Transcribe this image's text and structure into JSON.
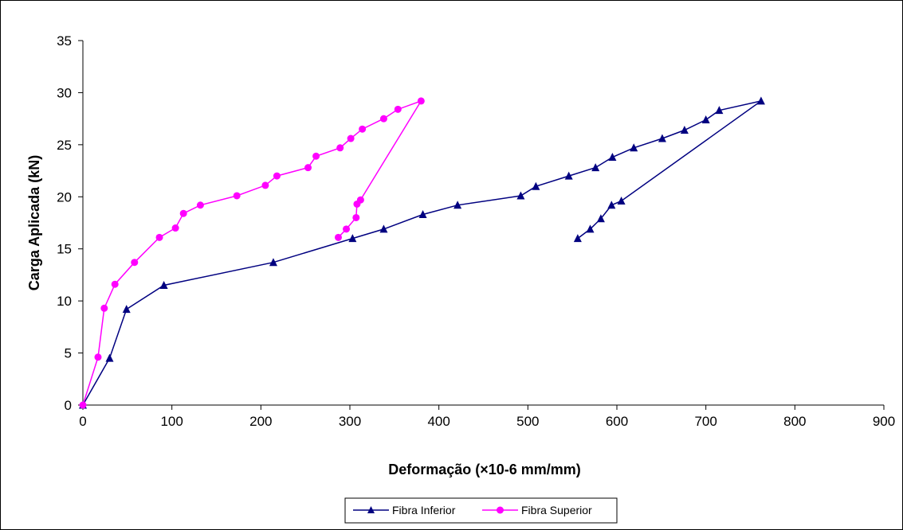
{
  "chart_data": {
    "type": "line",
    "xlabel": "Deformação (×10-6 mm/mm)",
    "ylabel": "Carga Aplicada (kN)",
    "xlim": [
      0,
      900
    ],
    "ylim": [
      0,
      35
    ],
    "xticks": [
      "0",
      "100",
      "200",
      "300",
      "400",
      "500",
      "600",
      "700",
      "800",
      "900"
    ],
    "yticks": [
      "0",
      "5",
      "10",
      "15",
      "20",
      "25",
      "30",
      "35"
    ],
    "grid": false,
    "legend_position": "bottom",
    "series": [
      {
        "name": "Fibra Inferior",
        "color": "#000080",
        "marker": "triangle",
        "x": [
          0,
          30,
          49,
          91,
          214,
          303,
          338,
          382,
          421,
          492,
          509,
          546,
          576,
          595,
          619,
          651,
          676,
          700,
          715,
          762,
          605,
          594,
          582,
          570,
          556
        ],
        "y": [
          0,
          4.5,
          9.2,
          11.5,
          13.7,
          16.0,
          16.9,
          18.3,
          19.2,
          20.1,
          21.0,
          22.0,
          22.8,
          23.8,
          24.7,
          25.6,
          26.4,
          27.4,
          28.3,
          29.2,
          19.6,
          19.2,
          17.9,
          16.9,
          16.0
        ]
      },
      {
        "name": "Fibra Superior",
        "color": "#FF00FF",
        "marker": "circle",
        "x": [
          0,
          17,
          24,
          36,
          58,
          86,
          104,
          113,
          132,
          173,
          205,
          218,
          253,
          262,
          289,
          301,
          314,
          338,
          354,
          380,
          312,
          308,
          307,
          296,
          287
        ],
        "y": [
          0,
          4.6,
          9.3,
          11.6,
          13.7,
          16.1,
          17.0,
          18.4,
          19.2,
          20.1,
          21.1,
          22.0,
          22.8,
          23.9,
          24.7,
          25.6,
          26.5,
          27.5,
          28.4,
          29.2,
          19.7,
          19.3,
          18.0,
          16.9,
          16.1
        ]
      }
    ]
  }
}
